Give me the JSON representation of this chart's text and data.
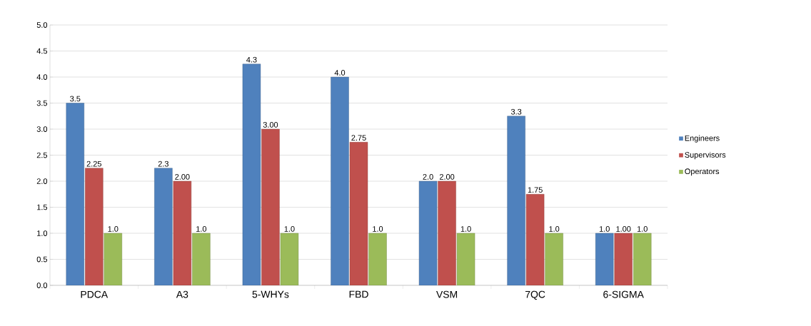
{
  "chart_data": {
    "type": "bar",
    "categories": [
      "PDCA",
      "A3",
      "5-WHYs",
      "FBD",
      "VSM",
      "7QC",
      "6-SIGMA"
    ],
    "series": [
      {
        "name": "Engineers",
        "color": "#4f81bd",
        "values": [
          3.5,
          2.25,
          4.25,
          4.0,
          2.0,
          3.25,
          1.0
        ],
        "value_labels": [
          "3.5",
          "2.3",
          "4.3",
          "4.0",
          "2.0",
          "3.3",
          "1.0"
        ]
      },
      {
        "name": "Supervisors",
        "color": "#c0504d",
        "values": [
          2.25,
          2.0,
          3.0,
          2.75,
          2.0,
          1.75,
          1.0
        ],
        "value_labels": [
          "2.25",
          "2.00",
          "3.00",
          "2.75",
          "2.00",
          "1.75",
          "1.00"
        ]
      },
      {
        "name": "Operators",
        "color": "#9bbb59",
        "values": [
          1.0,
          1.0,
          1.0,
          1.0,
          1.0,
          1.0,
          1.0
        ],
        "value_labels": [
          "1.0",
          "1.0",
          "1.0",
          "1.0",
          "1.0",
          "1.0",
          "1.0"
        ]
      }
    ],
    "ylim": [
      0,
      5
    ],
    "yticks": [
      {
        "value": 0,
        "label": "0.0"
      },
      {
        "value": 0.5,
        "label": "0.5"
      },
      {
        "value": 1,
        "label": "1.0"
      },
      {
        "value": 1.5,
        "label": "1.5"
      },
      {
        "value": 2,
        "label": "2.0"
      },
      {
        "value": 2.5,
        "label": "2.5"
      },
      {
        "value": 3,
        "label": "3.0"
      },
      {
        "value": 3.5,
        "label": "3.5"
      },
      {
        "value": 4,
        "label": "4.0"
      },
      {
        "value": 4.5,
        "label": "4.5"
      },
      {
        "value": 5,
        "label": "5.0"
      }
    ],
    "grid": "y",
    "legend": "right"
  }
}
